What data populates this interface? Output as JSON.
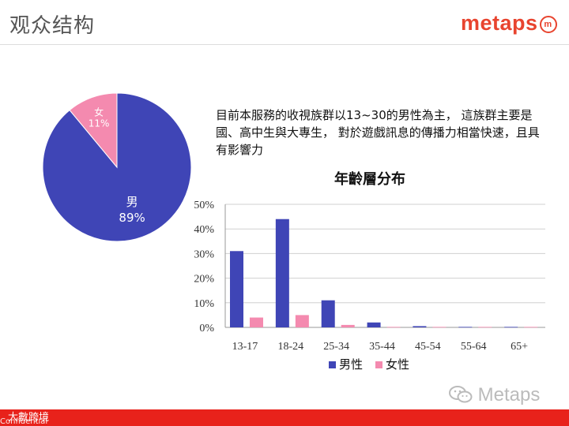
{
  "slide": {
    "title": "观众结构"
  },
  "logo": {
    "text": "metaps",
    "badge": "m"
  },
  "description": "目前本服務的收視族群以13~30的男性為主， 這族群主要是國、高中生與大專生， 對於遊戲訊息的傳播力相當快速，且具有影響力",
  "chart_data": [
    {
      "type": "pie",
      "title": "",
      "slices": [
        {
          "label": "男",
          "value": 89,
          "value_label": "89%",
          "color": "#3f45b6"
        },
        {
          "label": "女",
          "value": 11,
          "value_label": "11%",
          "color": "#f48aaf"
        }
      ]
    },
    {
      "type": "bar",
      "title": "年齡層分布",
      "categories": [
        "13-17",
        "18-24",
        "25-34",
        "35-44",
        "45-54",
        "55-64",
        "65+"
      ],
      "series": [
        {
          "name": "男性",
          "color": "#3f45b6",
          "values": [
            31,
            44,
            11,
            2,
            0.5,
            0.2,
            0.2
          ]
        },
        {
          "name": "女性",
          "color": "#f48aaf",
          "values": [
            4,
            5,
            1,
            0.2,
            0.2,
            0.2,
            0.2
          ]
        }
      ],
      "ylim": [
        0,
        50
      ],
      "yticks": [
        "0%",
        "10%",
        "20%",
        "30%",
        "40%",
        "50%"
      ],
      "grid": true,
      "legend": "bottom"
    }
  ],
  "watermark": {
    "text": "Metaps",
    "icon": "wechat-icon"
  },
  "footer": {
    "brand": "大數跨境",
    "confidential": "Confidential",
    "color": "#e8221b"
  }
}
